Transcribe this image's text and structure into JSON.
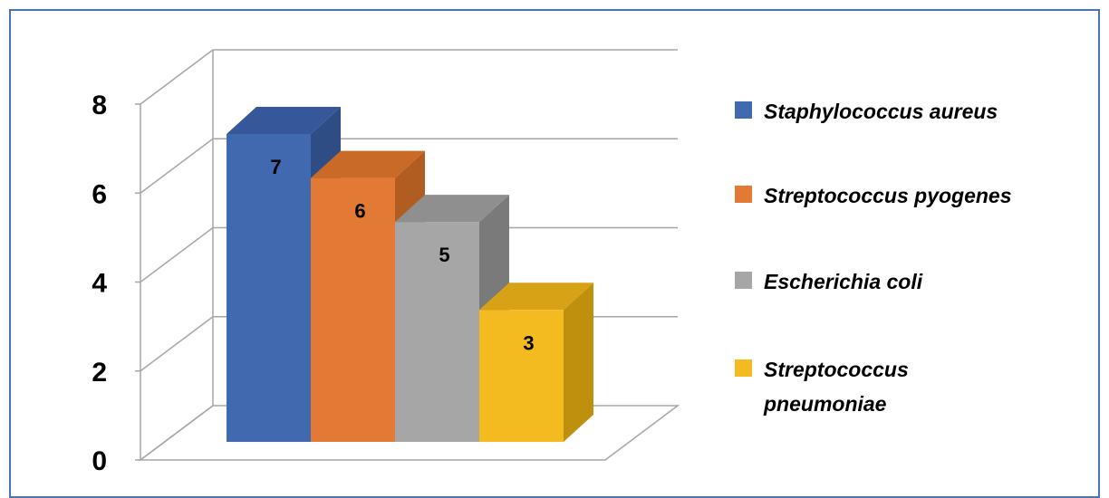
{
  "chart_data": {
    "type": "bar",
    "style": "3d-column",
    "categories": [
      "Staphylococcus aureus",
      "Streptococcus pyogenes",
      "Escherichia coli",
      "Streptococcus pneumoniae"
    ],
    "values": [
      7,
      6,
      5,
      3
    ],
    "data_labels": [
      "7",
      "6",
      "5",
      "3"
    ],
    "ylim": [
      0,
      8
    ],
    "yticks": [
      "0",
      "2",
      "4",
      "6",
      "8"
    ],
    "ytick_values": [
      0,
      2,
      4,
      6,
      8
    ],
    "grid": true,
    "legend_position": "right",
    "legend": [
      {
        "lines": [
          "Staphylococcus aureus"
        ],
        "color": "#4169b0"
      },
      {
        "lines": [
          "Streptococcus pyogenes"
        ],
        "color": "#e27a35"
      },
      {
        "lines": [
          "Escherichia coli"
        ],
        "color": "#a6a6a6"
      },
      {
        "lines": [
          "Streptococcus",
          "pneumoniae"
        ],
        "color": "#f4bb20"
      }
    ],
    "colors": {
      "front": [
        "#4169b0",
        "#e27a35",
        "#a6a6a6",
        "#f4bb20"
      ],
      "side": [
        "#2e4d84",
        "#b15c20",
        "#7a7a7a",
        "#bf8f0e"
      ],
      "top": [
        "#36589a",
        "#c96a27",
        "#8f8f8f",
        "#d7a215"
      ],
      "grid": "#a6a6a6"
    }
  }
}
